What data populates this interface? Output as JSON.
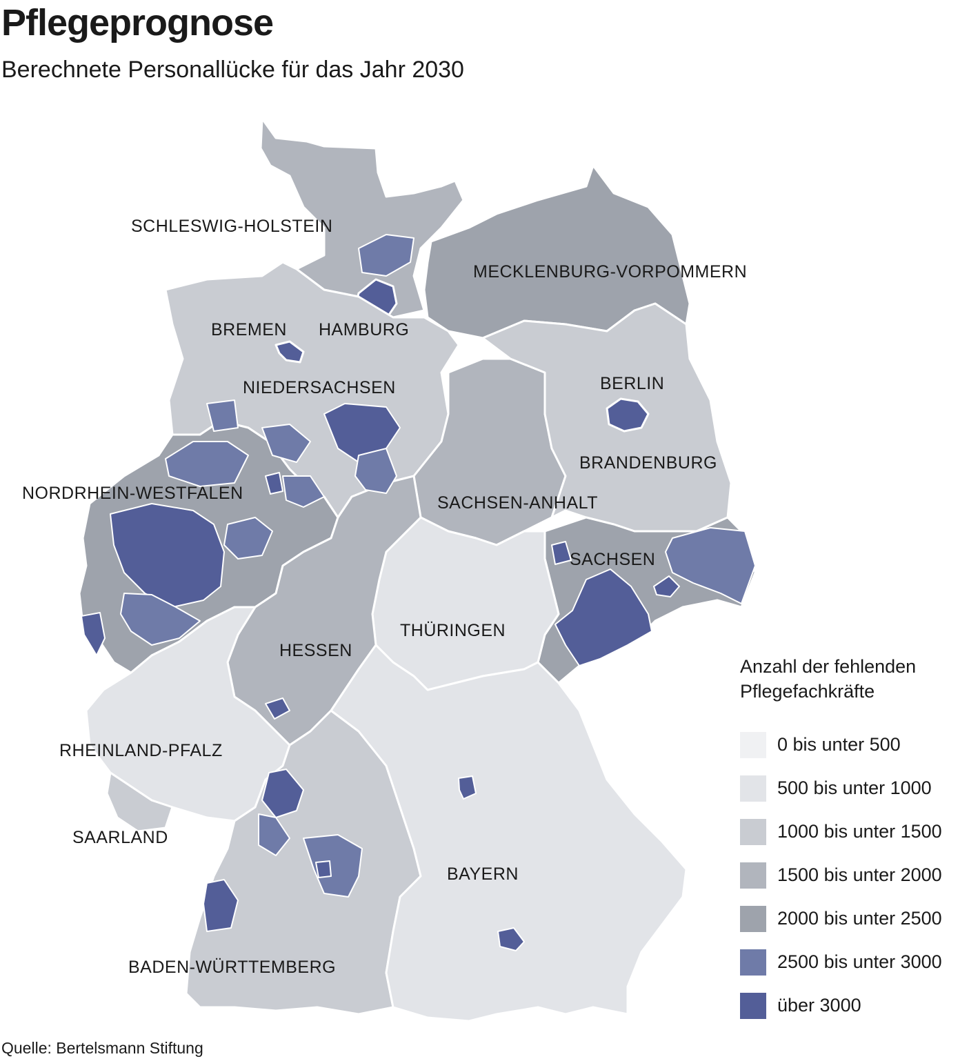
{
  "title": "Pflegeprognose",
  "subtitle": "Berechnete Personallücke für das Jahr 2030",
  "source": "Quelle: Bertelsmann Stiftung",
  "legend": {
    "title_line1": "Anzahl der fehlenden",
    "title_line2": "Pflegefachkräfte",
    "items": [
      {
        "label": "0 bis unter 500",
        "color": "#f0f1f3"
      },
      {
        "label": "500 bis unter 1000",
        "color": "#e2e4e8"
      },
      {
        "label": "1000 bis unter 1500",
        "color": "#c9ccd2"
      },
      {
        "label": "1500 bis unter 2000",
        "color": "#b1b5bd"
      },
      {
        "label": "2000 bis unter 2500",
        "color": "#9ea3ac"
      },
      {
        "label": "2500 bis unter 3000",
        "color": "#6f7ba8"
      },
      {
        "label": "über 3000",
        "color": "#535e98"
      }
    ]
  },
  "states": [
    {
      "name": "SCHLESWIG-HOLSTEIN"
    },
    {
      "name": "MECKLENBURG-VORPOMMERN"
    },
    {
      "name": "BREMEN"
    },
    {
      "name": "HAMBURG"
    },
    {
      "name": "NIEDERSACHSEN"
    },
    {
      "name": "BERLIN"
    },
    {
      "name": "BRANDENBURG"
    },
    {
      "name": "NORDRHEIN-WESTFALEN"
    },
    {
      "name": "SACHSEN-ANHALT"
    },
    {
      "name": "SACHSEN"
    },
    {
      "name": "THÜRINGEN"
    },
    {
      "name": "HESSEN"
    },
    {
      "name": "RHEINLAND-PFALZ"
    },
    {
      "name": "SAARLAND"
    },
    {
      "name": "BAYERN"
    },
    {
      "name": "BADEN-WÜRTTEMBERG"
    }
  ]
}
